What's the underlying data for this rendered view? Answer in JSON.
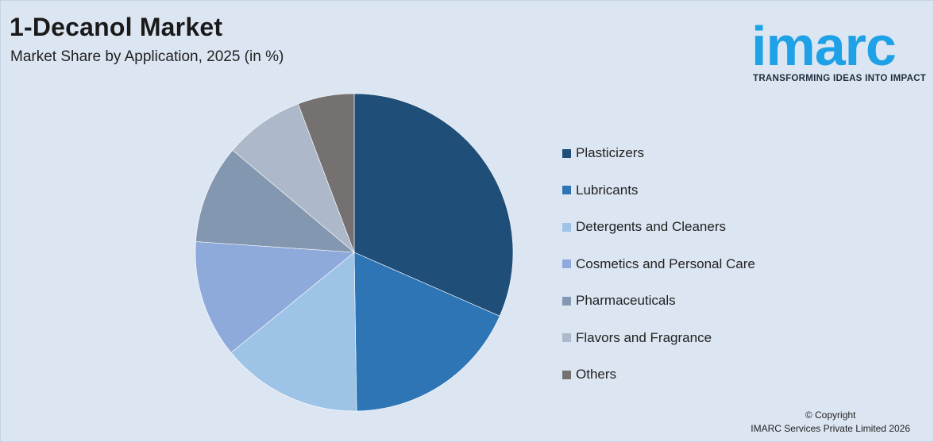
{
  "header": {
    "title": "1-Decanol Market",
    "subtitle": "Market Share by Application, 2025 (in %)"
  },
  "logo": {
    "word": "imarc",
    "tagline": "TRANSFORMING IDEAS INTO IMPACT",
    "color": "#1ea1e6"
  },
  "chart_data": {
    "type": "pie",
    "title": "1-Decanol Market",
    "subtitle": "Market Share by Application, 2025 (in %)",
    "legend_position": "right",
    "start_angle_deg": 0,
    "direction": "clockwise",
    "slices": [
      {
        "label": "Plasticizers",
        "value": 33,
        "color": "#1f4e79"
      },
      {
        "label": "Lubricants",
        "value": 19,
        "color": "#2e75b6"
      },
      {
        "label": "Detergents and Cleaners",
        "value": 15,
        "color": "#9dc3e6"
      },
      {
        "label": "Cosmetics and Personal Care",
        "value": 12.5,
        "color": "#8eaadb"
      },
      {
        "label": "Pharmaceuticals",
        "value": 10.5,
        "color": "#8497b0"
      },
      {
        "label": "Flavors and Fragrance",
        "value": 8.5,
        "color": "#adb9ca"
      },
      {
        "label": "Others",
        "value": 6,
        "color": "#767171"
      }
    ]
  },
  "footer": {
    "copyright_line1": "© Copyright",
    "copyright_line2": "IMARC Services Private Limited 2026"
  }
}
